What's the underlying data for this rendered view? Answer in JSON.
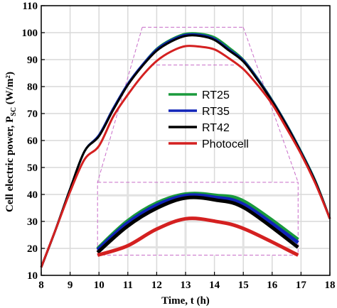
{
  "chart_data": {
    "type": "line",
    "xlabel": "Time, t (h)",
    "ylabel_main": "Cell electric power, P",
    "ylabel_sub": "SC",
    "ylabel_unit": " (W/m²)",
    "xlim": [
      8,
      18
    ],
    "ylim": [
      10,
      110
    ],
    "xticks": [
      8,
      9,
      10,
      11,
      12,
      13,
      14,
      15,
      16,
      17,
      18
    ],
    "yticks": [
      10,
      20,
      30,
      40,
      50,
      60,
      70,
      80,
      90,
      100,
      110
    ],
    "grid": true,
    "legend_position": "center",
    "x": [
      8,
      8.5,
      9,
      9.5,
      10,
      10.5,
      11,
      11.5,
      12,
      12.5,
      13,
      13.5,
      14,
      14.5,
      15,
      15.5,
      16,
      16.5,
      17,
      17.5,
      18
    ],
    "series": [
      {
        "name": "RT25",
        "color": "#1a9a3c",
        "values": [
          13,
          27,
          42,
          56,
          62,
          72,
          81,
          88,
          94,
          97.5,
          99.6,
          99.6,
          98.3,
          94.5,
          90,
          83,
          75,
          66,
          56,
          45,
          31
        ]
      },
      {
        "name": "RT35",
        "color": "#1024b8",
        "values": [
          13,
          27,
          42,
          56,
          62,
          72,
          81,
          88,
          93.8,
          97.2,
          99.2,
          99.2,
          97.7,
          93.8,
          89.7,
          82.8,
          74.8,
          65.8,
          55.8,
          44.8,
          31
        ]
      },
      {
        "name": "RT42",
        "color": "#000000",
        "values": [
          13,
          27,
          42,
          56,
          61.6,
          71.5,
          80.6,
          87.6,
          93.3,
          96.7,
          98.8,
          98.8,
          97.3,
          93.4,
          89.3,
          82.4,
          74.5,
          65.5,
          55.5,
          44.6,
          31
        ]
      },
      {
        "name": "Photocell",
        "color": "#d42020",
        "values": [
          13,
          27,
          41,
          53,
          58,
          69,
          77,
          84,
          89.5,
          93,
          95,
          94.8,
          93.8,
          90.5,
          86.5,
          80.5,
          73.5,
          64.5,
          55,
          44,
          31
        ]
      }
    ],
    "inset": {
      "zoom_x": [
        11.5,
        15
      ],
      "zoom_y": [
        88,
        102
      ],
      "inset_xlim": [
        10,
        16.8
      ],
      "inset_ylim": [
        17,
        45
      ],
      "inset_ticks": [
        20,
        30,
        40
      ],
      "x": [
        10,
        11,
        12,
        13,
        14,
        15,
        16.8
      ],
      "series": [
        {
          "color": "#1a9a3c",
          "values": [
            19.5,
            30,
            37,
            40.5,
            40,
            37.5,
            23
          ]
        },
        {
          "color": "#1024b8",
          "values": [
            19,
            29.2,
            36.2,
            39.9,
            39.2,
            36.2,
            21.8
          ]
        },
        {
          "color": "#000000",
          "values": [
            18,
            28,
            35,
            39,
            38.2,
            35,
            20
          ]
        },
        {
          "color": "#d42020",
          "values": [
            17,
            20.5,
            27,
            31,
            30,
            27,
            17
          ]
        }
      ]
    }
  }
}
